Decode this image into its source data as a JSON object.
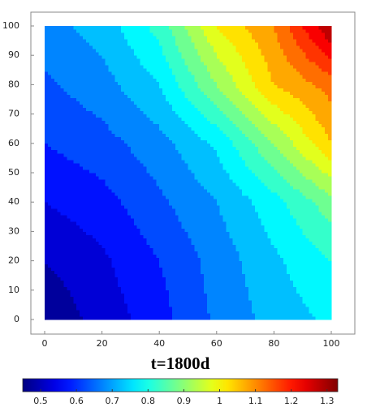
{
  "chart_data": {
    "type": "contour",
    "title": "t=1800d",
    "x": [
      0,
      20,
      40,
      60,
      80,
      100
    ],
    "y": [
      0,
      20,
      40,
      60,
      80,
      100
    ],
    "z": [
      [
        0.46,
        0.52,
        0.58,
        0.66,
        0.72,
        0.76
      ],
      [
        0.5,
        0.54,
        0.6,
        0.67,
        0.74,
        0.8
      ],
      [
        0.55,
        0.58,
        0.64,
        0.7,
        0.78,
        0.88
      ],
      [
        0.6,
        0.63,
        0.68,
        0.76,
        0.9,
        1.05
      ],
      [
        0.64,
        0.68,
        0.75,
        0.9,
        1.05,
        1.12
      ],
      [
        0.68,
        0.72,
        0.82,
        1.0,
        1.1,
        1.3
      ]
    ],
    "levels": [
      0.45,
      0.5,
      0.55,
      0.6,
      0.65,
      0.7,
      0.75,
      0.8,
      0.85,
      0.9,
      0.95,
      1.0,
      1.05,
      1.1,
      1.15,
      1.2,
      1.25,
      1.3
    ],
    "colormap": "jet",
    "clim": [
      0.45,
      1.33
    ],
    "cticks": [
      0.5,
      0.6,
      0.7,
      0.8,
      0.9,
      1,
      1.1,
      1.2,
      1.3
    ],
    "xlim": [
      0,
      100
    ],
    "ylim": [
      0,
      100
    ],
    "xticks": [
      0,
      20,
      40,
      60,
      80,
      100
    ],
    "yticks": [
      0,
      10,
      20,
      30,
      40,
      50,
      60,
      70,
      80,
      90,
      100
    ]
  }
}
